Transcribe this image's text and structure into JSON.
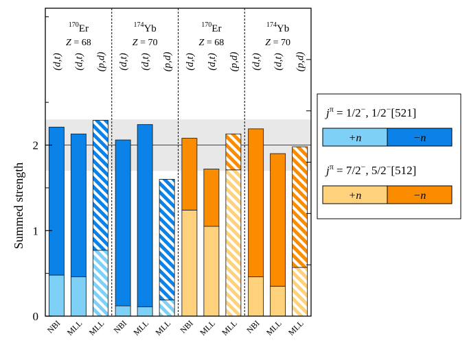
{
  "chart_data": {
    "type": "bar",
    "stacked": true,
    "ylabel": "Summed strength",
    "ylim": [
      0,
      3.6
    ],
    "yticks": [
      0,
      1,
      2
    ],
    "reference_line": 2,
    "reference_band": [
      1.7,
      2.3
    ],
    "groups": [
      {
        "nucleus": "Er",
        "mass": "170",
        "z_label": "Z = 68",
        "state": "a",
        "bars": [
          {
            "category": "NBI",
            "reaction": "(d,t)",
            "lower": 0.48,
            "total": 2.21,
            "hatched": false
          },
          {
            "category": "MLL",
            "reaction": "(d,t)",
            "lower": 0.46,
            "total": 2.13,
            "hatched": false
          },
          {
            "category": "MLL",
            "reaction": "(p,d)",
            "lower": 0.77,
            "total": 2.29,
            "hatched": true
          }
        ]
      },
      {
        "nucleus": "Yb",
        "mass": "174",
        "z_label": "Z = 70",
        "state": "a",
        "bars": [
          {
            "category": "NBI",
            "reaction": "(d,t)",
            "lower": 0.12,
            "total": 2.06,
            "hatched": false
          },
          {
            "category": "MLL",
            "reaction": "(d,t)",
            "lower": 0.11,
            "total": 2.24,
            "hatched": false
          },
          {
            "category": "MLL",
            "reaction": "(p,d)",
            "lower": 0.19,
            "total": 1.6,
            "hatched": true
          }
        ]
      },
      {
        "nucleus": "Er",
        "mass": "170",
        "z_label": "Z = 68",
        "state": "b",
        "bars": [
          {
            "category": "NBI",
            "reaction": "(d,t)",
            "lower": 1.24,
            "total": 2.08,
            "hatched": false
          },
          {
            "category": "MLL",
            "reaction": "(d,t)",
            "lower": 1.05,
            "total": 1.72,
            "hatched": false
          },
          {
            "category": "MLL",
            "reaction": "(p,d)",
            "lower": 1.71,
            "total": 2.13,
            "hatched": true
          }
        ]
      },
      {
        "nucleus": "Yb",
        "mass": "174",
        "z_label": "Z = 70",
        "state": "b",
        "bars": [
          {
            "category": "NBI",
            "reaction": "(d,t)",
            "lower": 0.46,
            "total": 2.19,
            "hatched": false
          },
          {
            "category": "MLL",
            "reaction": "(d,t)",
            "lower": 0.35,
            "total": 1.9,
            "hatched": false
          },
          {
            "category": "MLL",
            "reaction": "(p,d)",
            "lower": 0.57,
            "total": 1.98,
            "hatched": true
          }
        ]
      }
    ],
    "legend": [
      {
        "key": "a",
        "jpi": "1/2",
        "parity": "−",
        "orbital": "1/2",
        "nilsson": "[521]",
        "plus_label": "+n",
        "minus_label": "−n"
      },
      {
        "key": "b",
        "jpi": "7/2",
        "parity": "−",
        "orbital": "5/2",
        "nilsson": "[512]",
        "plus_label": "+n",
        "minus_label": "−n"
      }
    ],
    "legend_placement": "right"
  },
  "colors": {
    "a_light": "#7fd0f7",
    "a_dark": "#0a82e8",
    "b_light": "#fed27c",
    "b_dark": "#fb8c00",
    "band": "#e8e8e8"
  }
}
